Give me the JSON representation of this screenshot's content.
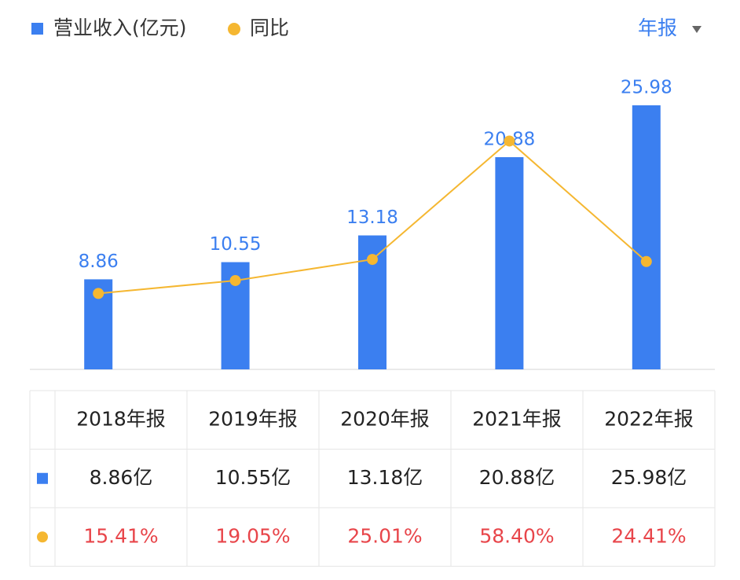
{
  "chart_data": {
    "type": "bar",
    "categories": [
      "2018年报",
      "2019年报",
      "2020年报",
      "2021年报",
      "2022年报"
    ],
    "series": [
      {
        "name": "营业收入(亿元)",
        "color": "#3b7ff0",
        "values": [
          8.86,
          10.55,
          13.18,
          20.88,
          25.98
        ],
        "value_labels": [
          "8.86亿",
          "10.55亿",
          "13.18亿",
          "20.88亿",
          "25.98亿"
        ]
      },
      {
        "name": "同比",
        "type": "line",
        "axis": "y2",
        "color": "#f5b731",
        "values": [
          15.41,
          19.05,
          25.01,
          58.4,
          24.41
        ],
        "value_labels": [
          "15.41%",
          "19.05%",
          "25.01%",
          "58.40%",
          "24.41%"
        ]
      }
    ],
    "ylim": [
      0,
      30
    ],
    "y2lim": [
      -6,
      80
    ],
    "grid": false
  },
  "controls": {
    "period": "年报"
  }
}
